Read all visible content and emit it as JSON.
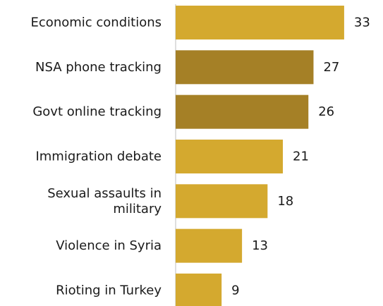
{
  "chart_data": {
    "type": "bar",
    "orientation": "horizontal",
    "categories": [
      "Economic conditions",
      "NSA phone tracking",
      "Govt online tracking",
      "Immigration debate",
      "Sexual assaults in military",
      "Violence in Syria",
      "Rioting in Turkey"
    ],
    "values": [
      33,
      27,
      26,
      21,
      18,
      13,
      9
    ],
    "bar_colors": [
      "#d4a92f",
      "#a58026",
      "#a58026",
      "#d4a92f",
      "#d4a92f",
      "#d4a92f",
      "#d4a92f"
    ],
    "title": "",
    "xlabel": "",
    "ylabel": "",
    "xlim": [
      0,
      36
    ],
    "grid": false,
    "legend": "none"
  }
}
